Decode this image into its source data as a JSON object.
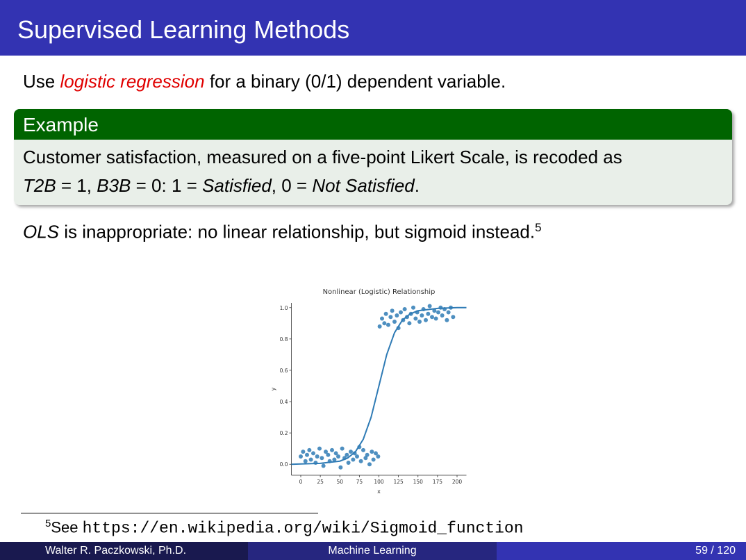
{
  "header": {
    "title": "Supervised Learning Methods"
  },
  "intro": {
    "before": "Use",
    "emphasis": "logistic regression",
    "after": "for a binary (0/1) dependent variable."
  },
  "example": {
    "title": "Example",
    "line1": "Customer satisfaction, measured on a five-point Likert Scale, is recoded as",
    "line2": {
      "t2b": "T2B",
      "eq1": "= 1,",
      "b3b": "B3B",
      "eq2": "= 0: 1 =",
      "sat": "Satisfied",
      "eq3": ", 0 =",
      "notsat": "Not Satisfied",
      "end": "."
    }
  },
  "ols": {
    "term": "OLS",
    "text": "is inappropriate: no linear relationship, but sigmoid instead.",
    "footnote_mark": "5"
  },
  "chart_data": {
    "type": "scatter",
    "title": "Nonlinear (Logistic) Relationship",
    "xlabel": "x",
    "ylabel": "y",
    "color": "#2f7bb5",
    "x": [
      0,
      3,
      6,
      8,
      11,
      13,
      16,
      19,
      21,
      24,
      27,
      29,
      32,
      35,
      37,
      40,
      43,
      45,
      48,
      51,
      53,
      56,
      59,
      61,
      64,
      67,
      69,
      72,
      75,
      77,
      80,
      83,
      85,
      88,
      91,
      93,
      96,
      99,
      101,
      104,
      107,
      109,
      112,
      115,
      117,
      120,
      123,
      125,
      128,
      131,
      133,
      136,
      139,
      141,
      144,
      147,
      149,
      152,
      155,
      157,
      160,
      163,
      165,
      168,
      171,
      173,
      176,
      179,
      181,
      184,
      187,
      189,
      192,
      195
    ],
    "values": [
      0.05,
      0.08,
      0.02,
      0.06,
      0.09,
      0.03,
      0.07,
      0.01,
      0.05,
      0.1,
      0.04,
      -0.01,
      0.08,
      0.06,
      0.02,
      0.09,
      0.03,
      0.07,
      0.05,
      -0.02,
      0.1,
      0.04,
      0.06,
      0.01,
      0.08,
      0.03,
      0.07,
      0.05,
      0.11,
      0.02,
      0.09,
      0.04,
      0.06,
      0.0,
      0.08,
      0.03,
      0.07,
      0.05,
      0.88,
      0.93,
      0.9,
      0.96,
      0.89,
      0.94,
      0.98,
      0.91,
      0.95,
      0.87,
      0.97,
      0.92,
      0.99,
      0.94,
      0.9,
      0.96,
      1.0,
      0.93,
      0.97,
      0.91,
      0.95,
      0.99,
      0.92,
      0.96,
      1.01,
      0.94,
      0.98,
      0.93,
      0.97,
      1.0,
      0.95,
      0.99,
      0.92,
      0.97,
      1.0,
      0.94
    ],
    "curve": {
      "x": [
        -12,
        0,
        25,
        50,
        60,
        70,
        80,
        90,
        100,
        110,
        120,
        130,
        140,
        150,
        175,
        200,
        212
      ],
      "values": [
        0.0,
        0.002,
        0.006,
        0.02,
        0.04,
        0.08,
        0.16,
        0.3,
        0.5,
        0.7,
        0.84,
        0.92,
        0.96,
        0.98,
        0.995,
        1.0,
        1.0
      ]
    },
    "xlim": [
      -12,
      212
    ],
    "ylim": [
      -0.07,
      1.03
    ],
    "xticks": [
      0,
      25,
      50,
      75,
      100,
      125,
      150,
      175,
      200
    ],
    "yticks": [
      {
        "value": 0,
        "label": "0.0"
      },
      {
        "value": 0.2,
        "label": "0.2"
      },
      {
        "value": 0.4,
        "label": "0.4"
      },
      {
        "value": 0.6,
        "label": "0.6"
      },
      {
        "value": 0.8,
        "label": "0.8"
      },
      {
        "value": 1,
        "label": "1.0"
      }
    ]
  },
  "footnote": {
    "mark": "5",
    "text": "See",
    "url": "https://en.wikipedia.org/wiki/Sigmoid_function"
  },
  "footer": {
    "author": "Walter R. Paczkowski, Ph.D.",
    "title": "Machine Learning",
    "page": "59 / 120"
  }
}
